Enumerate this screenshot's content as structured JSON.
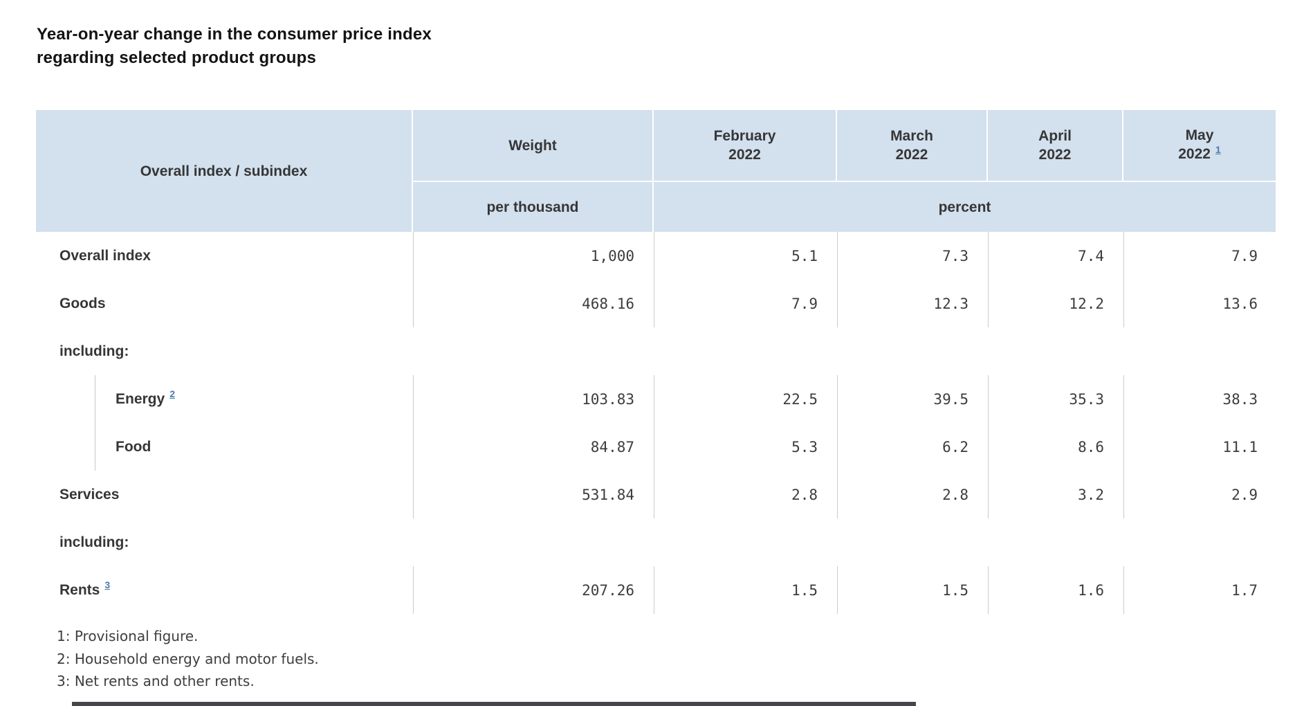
{
  "title": "Year-on-year change in the consumer price index regarding selected product groups",
  "chart_data": {
    "type": "table",
    "title": "Year-on-year change in the consumer price index regarding selected product groups",
    "header": {
      "row_label_header": "Overall index / subindex",
      "weight_label": "Weight",
      "weight_unit": "per thousand",
      "percent_unit": "percent",
      "months": [
        {
          "name": "February",
          "year": "2022",
          "footnote_ref": ""
        },
        {
          "name": "March",
          "year": "2022",
          "footnote_ref": ""
        },
        {
          "name": "April",
          "year": "2022",
          "footnote_ref": ""
        },
        {
          "name": "May",
          "year": "2022",
          "footnote_ref": "1"
        }
      ]
    },
    "rows": [
      {
        "type": "data",
        "label": "Overall index",
        "footnote_ref": "",
        "indent": false,
        "weight": "1,000",
        "values": [
          "5.1",
          "7.3",
          "7.4",
          "7.9"
        ]
      },
      {
        "type": "data",
        "label": "Goods",
        "footnote_ref": "",
        "indent": false,
        "weight": "468.16",
        "values": [
          "7.9",
          "12.3",
          "12.2",
          "13.6"
        ]
      },
      {
        "type": "section",
        "label": "including:"
      },
      {
        "type": "data",
        "label": "Energy",
        "footnote_ref": "2",
        "indent": true,
        "weight": "103.83",
        "values": [
          "22.5",
          "39.5",
          "35.3",
          "38.3"
        ]
      },
      {
        "type": "data",
        "label": "Food",
        "footnote_ref": "",
        "indent": true,
        "weight": "84.87",
        "values": [
          "5.3",
          "6.2",
          "8.6",
          "11.1"
        ]
      },
      {
        "type": "data",
        "label": "Services",
        "footnote_ref": "",
        "indent": false,
        "weight": "531.84",
        "values": [
          "2.8",
          "2.8",
          "3.2",
          "2.9"
        ]
      },
      {
        "type": "section",
        "label": "including:"
      },
      {
        "type": "data",
        "label": "Rents",
        "footnote_ref": "3",
        "indent": false,
        "weight": "207.26",
        "values": [
          "1.5",
          "1.5",
          "1.6",
          "1.7"
        ]
      }
    ],
    "footnotes": [
      "1: Provisional figure.",
      "2: Household energy and motor fuels.",
      "3: Net rents and other rents."
    ]
  },
  "colors": {
    "header_background": "#d3e0ee",
    "text": "#363636",
    "number_text": "#3c3c3c",
    "grid_line": "#cbcbcb",
    "footnote_link": "#4b7aab",
    "footnote_text": "#3e3e3e",
    "bottom_bar": "#43464b"
  }
}
